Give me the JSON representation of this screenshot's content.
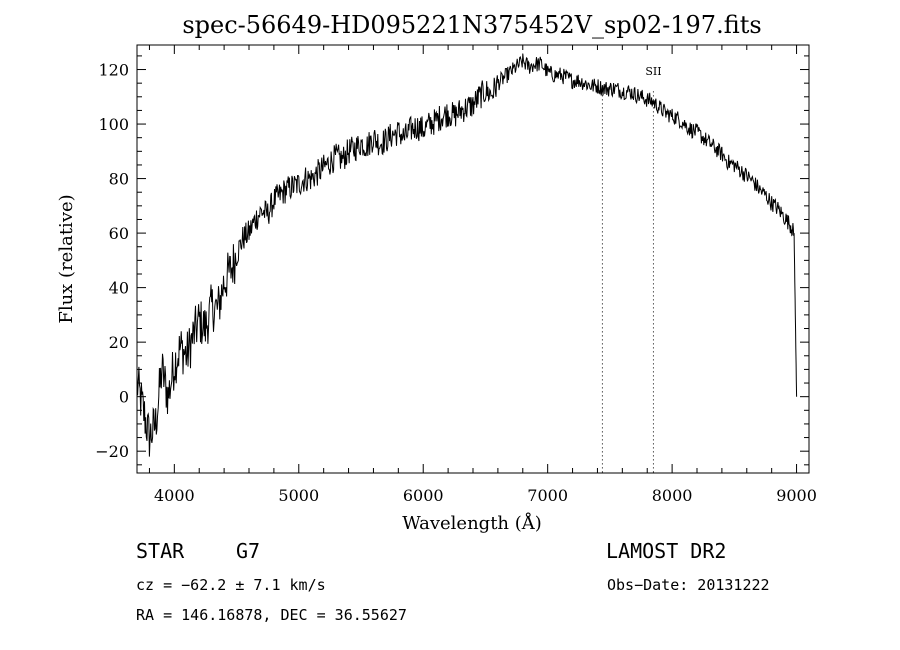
{
  "chart_data": {
    "type": "line",
    "title": "spec-56649-HD095221N375452V_sp02-197.fits",
    "xlabel": "Wavelength (Å)",
    "ylabel": "Flux (relative)",
    "xlim": [
      3700,
      9100
    ],
    "ylim": [
      -28,
      129
    ],
    "x_ticks": [
      4000,
      5000,
      6000,
      7000,
      8000,
      9000
    ],
    "y_ticks": [
      -20,
      0,
      20,
      40,
      60,
      80,
      100,
      120
    ],
    "grid": false,
    "line_markers": [
      {
        "label": "",
        "x": 7440
      },
      {
        "label": "SII",
        "x": 7850
      }
    ],
    "series": [
      {
        "x": [
          3700,
          3750,
          3800,
          3850,
          3900,
          3950,
          4000,
          4050,
          4100,
          4150,
          4200,
          4250,
          4300,
          4350,
          4400,
          4450,
          4500,
          4550,
          4600,
          4650,
          4700,
          4750,
          4800,
          4850,
          4900,
          4950,
          5000,
          5050,
          5100,
          5150,
          5200,
          5250,
          5300,
          5350,
          5400,
          5450,
          5500,
          5550,
          5600,
          5650,
          5700,
          5750,
          5800,
          5850,
          5900,
          5950,
          6000,
          6050,
          6100,
          6150,
          6200,
          6250,
          6300,
          6350,
          6400,
          6450,
          6500,
          6550,
          6600,
          6650,
          6700,
          6750,
          6800,
          6850,
          6900,
          6950,
          7000,
          7050,
          7100,
          7150,
          7200,
          7250,
          7300,
          7350,
          7400,
          7450,
          7500,
          7550,
          7600,
          7650,
          7700,
          7750,
          7800,
          7850,
          7900,
          7950,
          8000,
          8050,
          8100,
          8150,
          8200,
          8250,
          8300,
          8350,
          8400,
          8450,
          8500,
          8550,
          8600,
          8650,
          8700,
          8750,
          8800,
          8850,
          8900,
          8950,
          8980,
          9000
        ],
        "values": [
          5,
          -5,
          -15,
          -10,
          10,
          0,
          12,
          18,
          15,
          22,
          28,
          25,
          33,
          32,
          42,
          46,
          52,
          58,
          60,
          65,
          68,
          67,
          72,
          74,
          76,
          77,
          78,
          80,
          80,
          82,
          84,
          86,
          88,
          87,
          90,
          91,
          93,
          92,
          95,
          93,
          94,
          96,
          97,
          95,
          98,
          99,
          98,
          100,
          101,
          103,
          104,
          103,
          105,
          106,
          107,
          110,
          112,
          111,
          115,
          117,
          119,
          121,
          123,
          121,
          122,
          122,
          119,
          118,
          118,
          117,
          116,
          116,
          115,
          114,
          114,
          113,
          113,
          113,
          112,
          112,
          111,
          110,
          109,
          108,
          106,
          104,
          103,
          102,
          100,
          98,
          97,
          95,
          93,
          91,
          89,
          86,
          85,
          83,
          81,
          79,
          76,
          74,
          71,
          69,
          66,
          63,
          60,
          0
        ]
      }
    ],
    "annotations": {
      "object_type": "STAR",
      "subclass": "G7",
      "survey": "LAMOST DR2",
      "velocity": "cz = −62.2 ± 7.1 km/s",
      "obs_date": "Obs−Date: 20131222",
      "coords": "RA = 146.16878, DEC =  36.55627"
    }
  }
}
